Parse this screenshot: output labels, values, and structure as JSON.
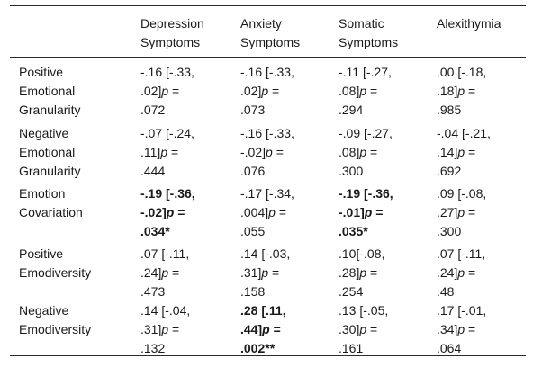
{
  "headers": [
    "",
    "Depression Symptoms",
    "Anxiety Symptoms",
    "Somatic Symptoms",
    "Alexithymia"
  ],
  "header_lines": [
    [
      ""
    ],
    [
      "Depression",
      "Symptoms"
    ],
    [
      "Anxiety",
      "Symptoms"
    ],
    [
      "Somatic",
      "Symptoms"
    ],
    [
      "Alexithymia"
    ]
  ],
  "rows": [
    {
      "label": [
        "Positive",
        "Emotional",
        "Granularity"
      ],
      "cells": [
        {
          "lines": [
            "-.16 [-.33,",
            ".02]p =",
            ".072"
          ],
          "bold": false
        },
        {
          "lines": [
            "-.16 [-.33,",
            ".02]p =",
            ".073"
          ],
          "bold": false
        },
        {
          "lines": [
            "-.11 [-.27,",
            ".08]p =",
            ".294"
          ],
          "bold": false
        },
        {
          "lines": [
            ".00 [-.18,",
            ".18]p =",
            ".985"
          ],
          "bold": false
        }
      ]
    },
    {
      "label": [
        "Negative",
        "Emotional",
        "Granularity"
      ],
      "cells": [
        {
          "lines": [
            "-.07 [-.24,",
            ".11]p =",
            ".444"
          ],
          "bold": false
        },
        {
          "lines": [
            "-.16 [-.33,",
            "-.02]p =",
            ".076"
          ],
          "bold": false
        },
        {
          "lines": [
            "-.09 [-.27,",
            ".08]p =",
            ".300"
          ],
          "bold": false
        },
        {
          "lines": [
            "-.04 [-.21,",
            ".14]p =",
            ".692"
          ],
          "bold": false
        }
      ]
    },
    {
      "label": [
        "Emotion",
        "Covariation"
      ],
      "cells": [
        {
          "lines": [
            "-.19 [-.36,",
            "-.02]p =",
            ".034*"
          ],
          "bold": true
        },
        {
          "lines": [
            "-.17 [-.34,",
            ".004]p =",
            ".055"
          ],
          "bold": false
        },
        {
          "lines": [
            "-.19 [-.36,",
            "-.01]p =",
            ".035*"
          ],
          "bold": true
        },
        {
          "lines": [
            ".09 [-.08,",
            ".27]p =",
            ".300"
          ],
          "bold": false
        }
      ]
    },
    {
      "label": [
        "Positive",
        "Emodiversity"
      ],
      "cells": [
        {
          "lines": [
            ".07 [-.11,",
            ".24]p =",
            ".473"
          ],
          "bold": false
        },
        {
          "lines": [
            ".14 [-.03,",
            ".31]p =",
            ".158"
          ],
          "bold": false
        },
        {
          "lines": [
            ".10[-.08,",
            ".28]p =",
            ".254"
          ],
          "bold": false
        },
        {
          "lines": [
            ".07 [-.11,",
            ".24]p =",
            ".48"
          ],
          "bold": false
        }
      ]
    },
    {
      "label": [
        "Negative",
        "Emodiversity"
      ],
      "cells": [
        {
          "lines": [
            ".14 [-.04,",
            ".31]p =",
            ".132"
          ],
          "bold": false
        },
        {
          "lines": [
            ".28 [.11,",
            ".44]p =",
            ".002**"
          ],
          "bold": true
        },
        {
          "lines": [
            ".13 [-.05,",
            ".30]p =",
            ".161"
          ],
          "bold": false
        },
        {
          "lines": [
            ".17 [-.01,",
            ".34]p =",
            ".064"
          ],
          "bold": false
        }
      ]
    }
  ]
}
